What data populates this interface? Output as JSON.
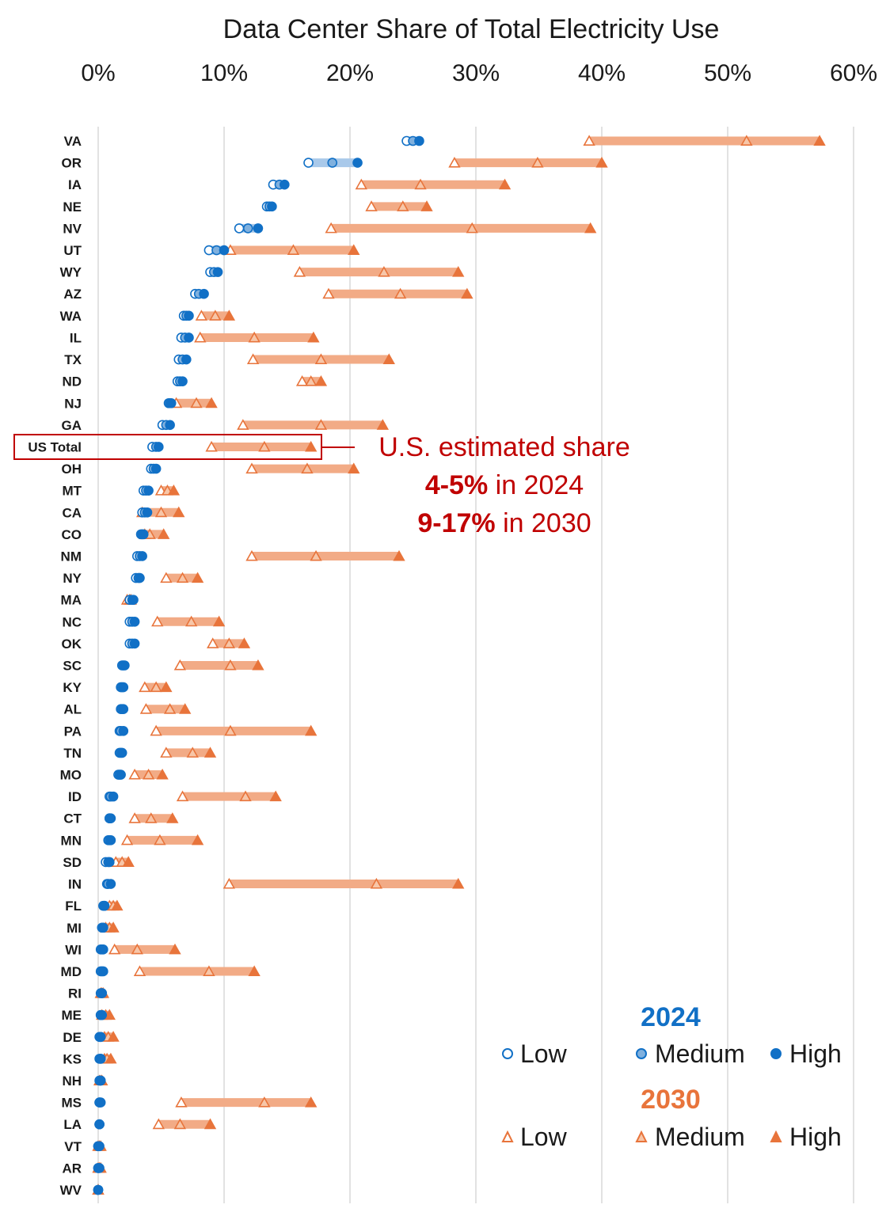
{
  "colors": {
    "blue": "#1170c6",
    "blue_light": "#a9c9ea",
    "blue_med_fill": "#7fb0de",
    "orange": "#e8743b",
    "orange_band": "#f2ab86",
    "orange_med_fill": "#f7c6a8",
    "grid": "#d9d9d9",
    "annotation": "#c00000"
  },
  "annotation": {
    "line1": "U.S. estimated share",
    "line2_bold": "4-5%",
    "line2_rest": " in 2024",
    "line3_bold": "9-17%",
    "line3_rest": " in 2030"
  },
  "legend": {
    "year_2024": "2024",
    "year_2030": "2030",
    "low": "Low",
    "medium": "Medium",
    "high": "High"
  },
  "chart_data": {
    "type": "scatter",
    "title": "Data Center Share of Total Electricity Use",
    "x_ticks": [
      "0%",
      "10%",
      "20%",
      "30%",
      "40%",
      "50%",
      "60%"
    ],
    "xlim": [
      0,
      60
    ],
    "x_axis_position": "top",
    "grid": "vertical",
    "legend_position": "bottom-right",
    "highlighted_row": "US Total",
    "series": [
      {
        "name": "2024 Low"
      },
      {
        "name": "2024 Medium"
      },
      {
        "name": "2024 High"
      },
      {
        "name": "2030 Low"
      },
      {
        "name": "2030 Medium"
      },
      {
        "name": "2030 High"
      }
    ],
    "rows": [
      {
        "state": "VA",
        "y2024": [
          24.5,
          25.0,
          25.5
        ],
        "y2030": [
          39.0,
          51.5,
          57.3
        ]
      },
      {
        "state": "OR",
        "y2024": [
          16.7,
          18.6,
          20.6
        ],
        "y2030": [
          28.3,
          34.9,
          40.0
        ]
      },
      {
        "state": "IA",
        "y2024": [
          13.9,
          14.4,
          14.8
        ],
        "y2030": [
          20.9,
          25.6,
          32.3
        ]
      },
      {
        "state": "NE",
        "y2024": [
          13.4,
          13.6,
          13.8
        ],
        "y2030": [
          21.7,
          24.2,
          26.1
        ]
      },
      {
        "state": "NV",
        "y2024": [
          11.2,
          11.9,
          12.7
        ],
        "y2030": [
          18.5,
          29.7,
          39.1
        ]
      },
      {
        "state": "UT",
        "y2024": [
          8.8,
          9.4,
          10.0
        ],
        "y2030": [
          10.5,
          15.5,
          20.3
        ]
      },
      {
        "state": "WY",
        "y2024": [
          8.9,
          9.2,
          9.5
        ],
        "y2030": [
          16.0,
          22.7,
          28.6
        ]
      },
      {
        "state": "AZ",
        "y2024": [
          7.7,
          8.0,
          8.4
        ],
        "y2030": [
          18.3,
          24.0,
          29.3
        ]
      },
      {
        "state": "WA",
        "y2024": [
          6.8,
          7.0,
          7.2
        ],
        "y2030": [
          8.2,
          9.3,
          10.4
        ]
      },
      {
        "state": "IL",
        "y2024": [
          6.6,
          6.9,
          7.2
        ],
        "y2030": [
          8.1,
          12.4,
          17.1
        ]
      },
      {
        "state": "TX",
        "y2024": [
          6.4,
          6.7,
          7.0
        ],
        "y2030": [
          12.3,
          17.7,
          23.1
        ]
      },
      {
        "state": "ND",
        "y2024": [
          6.3,
          6.5,
          6.7
        ],
        "y2030": [
          16.2,
          16.9,
          17.7
        ]
      },
      {
        "state": "NJ",
        "y2024": [
          5.6,
          5.7,
          5.8
        ],
        "y2030": [
          6.2,
          7.8,
          9.0
        ]
      },
      {
        "state": "GA",
        "y2024": [
          5.1,
          5.4,
          5.7
        ],
        "y2030": [
          11.5,
          17.7,
          22.6
        ]
      },
      {
        "state": "US Total",
        "y2024": [
          4.3,
          4.6,
          4.8
        ],
        "y2030": [
          9.0,
          13.2,
          16.9
        ]
      },
      {
        "state": "OH",
        "y2024": [
          4.2,
          4.4,
          4.6
        ],
        "y2030": [
          12.2,
          16.6,
          20.3
        ]
      },
      {
        "state": "MT",
        "y2024": [
          3.6,
          3.8,
          4.0
        ],
        "y2030": [
          5.0,
          5.5,
          6.0
        ]
      },
      {
        "state": "CA",
        "y2024": [
          3.5,
          3.7,
          3.9
        ],
        "y2030": [
          3.5,
          5.0,
          6.4
        ]
      },
      {
        "state": "CO",
        "y2024": [
          3.4,
          3.5,
          3.6
        ],
        "y2030": [
          3.7,
          4.1,
          5.2
        ]
      },
      {
        "state": "NM",
        "y2024": [
          3.1,
          3.3,
          3.5
        ],
        "y2030": [
          12.2,
          17.3,
          23.9
        ]
      },
      {
        "state": "NY",
        "y2024": [
          3.0,
          3.2,
          3.3
        ],
        "y2030": [
          5.4,
          6.7,
          7.9
        ]
      },
      {
        "state": "MA",
        "y2024": [
          2.5,
          2.7,
          2.8
        ],
        "y2030": [
          2.3,
          2.5,
          2.6
        ]
      },
      {
        "state": "NC",
        "y2024": [
          2.5,
          2.7,
          2.9
        ],
        "y2030": [
          4.7,
          7.4,
          9.6
        ]
      },
      {
        "state": "OK",
        "y2024": [
          2.5,
          2.7,
          2.9
        ],
        "y2030": [
          9.1,
          10.4,
          11.6
        ]
      },
      {
        "state": "SC",
        "y2024": [
          1.9,
          2.0,
          2.1
        ],
        "y2030": [
          6.5,
          10.5,
          12.7
        ]
      },
      {
        "state": "KY",
        "y2024": [
          1.8,
          1.9,
          2.0
        ],
        "y2030": [
          3.7,
          4.6,
          5.4
        ]
      },
      {
        "state": "AL",
        "y2024": [
          1.8,
          1.9,
          2.0
        ],
        "y2030": [
          3.8,
          5.7,
          6.9
        ]
      },
      {
        "state": "PA",
        "y2024": [
          1.7,
          1.8,
          2.0
        ],
        "y2030": [
          4.6,
          10.5,
          16.9
        ]
      },
      {
        "state": "TN",
        "y2024": [
          1.7,
          1.8,
          1.9
        ],
        "y2030": [
          5.4,
          7.5,
          8.9
        ]
      },
      {
        "state": "MO",
        "y2024": [
          1.6,
          1.7,
          1.8
        ],
        "y2030": [
          2.9,
          4.0,
          5.1
        ]
      },
      {
        "state": "ID",
        "y2024": [
          0.9,
          1.0,
          1.2
        ],
        "y2030": [
          6.7,
          11.7,
          14.1
        ]
      },
      {
        "state": "CT",
        "y2024": [
          0.9,
          0.9,
          1.0
        ],
        "y2030": [
          2.9,
          4.2,
          5.9
        ]
      },
      {
        "state": "MN",
        "y2024": [
          0.8,
          0.9,
          1.0
        ],
        "y2030": [
          2.3,
          4.9,
          7.9
        ]
      },
      {
        "state": "SD",
        "y2024": [
          0.6,
          0.8,
          0.9
        ],
        "y2030": [
          1.4,
          1.9,
          2.4
        ]
      },
      {
        "state": "IN",
        "y2024": [
          0.7,
          0.8,
          1.0
        ],
        "y2030": [
          10.4,
          22.1,
          28.6
        ]
      },
      {
        "state": "FL",
        "y2024": [
          0.4,
          0.5,
          0.5
        ],
        "y2030": [
          0.9,
          1.2,
          1.5
        ]
      },
      {
        "state": "MI",
        "y2024": [
          0.3,
          0.4,
          0.4
        ],
        "y2030": [
          0.6,
          0.9,
          1.2
        ]
      },
      {
        "state": "WI",
        "y2024": [
          0.2,
          0.3,
          0.4
        ],
        "y2030": [
          1.3,
          3.1,
          6.1
        ]
      },
      {
        "state": "MD",
        "y2024": [
          0.2,
          0.3,
          0.4
        ],
        "y2030": [
          3.3,
          8.8,
          12.4
        ]
      },
      {
        "state": "RI",
        "y2024": [
          0.2,
          0.3,
          0.3
        ],
        "y2030": [
          0.2,
          0.3,
          0.4
        ]
      },
      {
        "state": "ME",
        "y2024": [
          0.2,
          0.2,
          0.3
        ],
        "y2030": [
          0.3,
          0.6,
          0.9
        ]
      },
      {
        "state": "DE",
        "y2024": [
          0.1,
          0.2,
          0.2
        ],
        "y2030": [
          0.5,
          0.8,
          1.2
        ]
      },
      {
        "state": "KS",
        "y2024": [
          0.1,
          0.2,
          0.2
        ],
        "y2030": [
          0.5,
          0.7,
          1.0
        ]
      },
      {
        "state": "NH",
        "y2024": [
          0.1,
          0.2,
          0.2
        ],
        "y2030": [
          0.1,
          0.2,
          0.3
        ]
      },
      {
        "state": "MS",
        "y2024": [
          0.1,
          0.1,
          0.2
        ],
        "y2030": [
          6.6,
          13.2,
          16.9
        ]
      },
      {
        "state": "LA",
        "y2024": [
          0.1,
          0.1,
          0.1
        ],
        "y2030": [
          4.8,
          6.5,
          8.9
        ]
      },
      {
        "state": "VT",
        "y2024": [
          0.0,
          0.0,
          0.1
        ],
        "y2030": [
          0.0,
          0.1,
          0.2
        ]
      },
      {
        "state": "AR",
        "y2024": [
          0.0,
          0.0,
          0.1
        ],
        "y2030": [
          0.0,
          0.1,
          0.2
        ]
      },
      {
        "state": "WV",
        "y2024": [
          0.0,
          0.0,
          0.0
        ],
        "y2030": [
          0.0,
          0.0,
          0.0
        ]
      }
    ]
  }
}
